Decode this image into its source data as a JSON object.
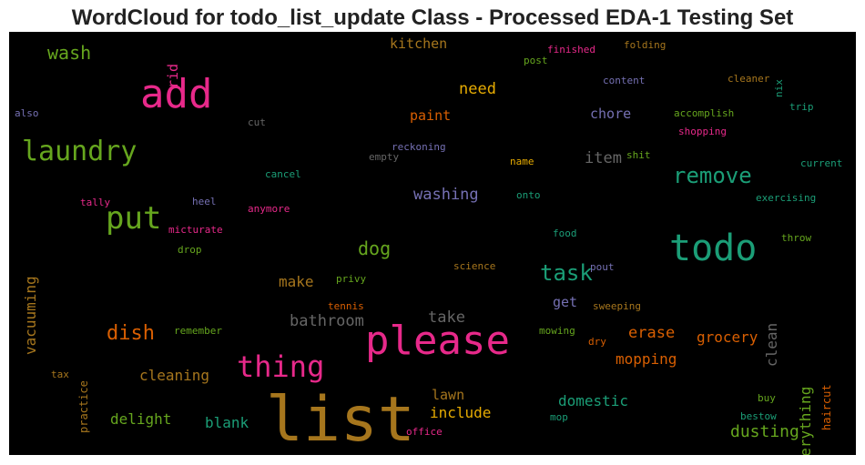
{
  "title": "WordCloud for todo_list_update Class - Processed EDA-1 Testing Set",
  "colors": {
    "background": "#000000",
    "palette": [
      "#1b9e77",
      "#d95f02",
      "#7570b3",
      "#e7298a",
      "#66a61e",
      "#e6ab02",
      "#a6761d",
      "#666666"
    ]
  },
  "chart_data": {
    "type": "wordcloud",
    "title": "WordCloud for todo_list_update Class - Processed EDA-1 Testing Set",
    "words": [
      {
        "text": "list",
        "color": "#a6761d"
      },
      {
        "text": "please",
        "color": "#e7298a"
      },
      {
        "text": "add",
        "color": "#e7298a"
      },
      {
        "text": "todo",
        "color": "#1b9e77"
      },
      {
        "text": "put",
        "color": "#66a61e"
      },
      {
        "text": "laundry",
        "color": "#66a61e"
      },
      {
        "text": "thing",
        "color": "#e7298a"
      },
      {
        "text": "remove",
        "color": "#1b9e77"
      },
      {
        "text": "task",
        "color": "#1b9e77"
      },
      {
        "text": "dish",
        "color": "#d95f02"
      },
      {
        "text": "wash",
        "color": "#66a61e"
      },
      {
        "text": "dog",
        "color": "#66a61e"
      },
      {
        "text": "need",
        "color": "#e6ab02"
      },
      {
        "text": "bathroom",
        "color": "#666666"
      },
      {
        "text": "take",
        "color": "#666666"
      },
      {
        "text": "item",
        "color": "#666666"
      },
      {
        "text": "washing",
        "color": "#7570b3"
      },
      {
        "text": "erase",
        "color": "#d95f02"
      },
      {
        "text": "dusting",
        "color": "#66a61e"
      },
      {
        "text": "grocery",
        "color": "#d95f02"
      },
      {
        "text": "mopping",
        "color": "#d95f02"
      },
      {
        "text": "cleaning",
        "color": "#a6761d"
      },
      {
        "text": "delight",
        "color": "#66a61e"
      },
      {
        "text": "blank",
        "color": "#1b9e77"
      },
      {
        "text": "include",
        "color": "#e6ab02"
      },
      {
        "text": "lawn",
        "color": "#a6761d"
      },
      {
        "text": "domestic",
        "color": "#1b9e77"
      },
      {
        "text": "kitchen",
        "color": "#a6761d"
      },
      {
        "text": "paint",
        "color": "#d95f02"
      },
      {
        "text": "chore",
        "color": "#7570b3"
      },
      {
        "text": "make",
        "color": "#a6761d"
      },
      {
        "text": "get",
        "color": "#7570b3"
      },
      {
        "text": "vacuuming",
        "color": "#a6761d"
      },
      {
        "text": "clean",
        "color": "#666666"
      },
      {
        "text": "everything",
        "color": "#66a61e"
      },
      {
        "text": "rid",
        "color": "#e7298a"
      },
      {
        "text": "practice",
        "color": "#a6761d"
      },
      {
        "text": "haircut",
        "color": "#d95f02"
      },
      {
        "text": "nix",
        "color": "#1b9e77"
      },
      {
        "text": "finished",
        "color": "#e7298a"
      },
      {
        "text": "folding",
        "color": "#a6761d"
      },
      {
        "text": "post",
        "color": "#66a61e"
      },
      {
        "text": "content",
        "color": "#7570b3"
      },
      {
        "text": "cleaner",
        "color": "#a6761d"
      },
      {
        "text": "also",
        "color": "#7570b3"
      },
      {
        "text": "cut",
        "color": "#666666"
      },
      {
        "text": "accomplish",
        "color": "#66a61e"
      },
      {
        "text": "trip",
        "color": "#1b9e77"
      },
      {
        "text": "shopping",
        "color": "#e7298a"
      },
      {
        "text": "reckoning",
        "color": "#7570b3"
      },
      {
        "text": "empty",
        "color": "#666666"
      },
      {
        "text": "name",
        "color": "#e6ab02"
      },
      {
        "text": "shit",
        "color": "#66a61e"
      },
      {
        "text": "current",
        "color": "#1b9e77"
      },
      {
        "text": "cancel",
        "color": "#1b9e77"
      },
      {
        "text": "exercising",
        "color": "#1b9e77"
      },
      {
        "text": "tally",
        "color": "#e7298a"
      },
      {
        "text": "heel",
        "color": "#7570b3"
      },
      {
        "text": "anymore",
        "color": "#e7298a"
      },
      {
        "text": "onto",
        "color": "#1b9e77"
      },
      {
        "text": "micturate",
        "color": "#e7298a"
      },
      {
        "text": "drop",
        "color": "#66a61e"
      },
      {
        "text": "food",
        "color": "#1b9e77"
      },
      {
        "text": "throw",
        "color": "#66a61e"
      },
      {
        "text": "science",
        "color": "#a6761d"
      },
      {
        "text": "pout",
        "color": "#7570b3"
      },
      {
        "text": "privy",
        "color": "#66a61e"
      },
      {
        "text": "tennis",
        "color": "#d95f02"
      },
      {
        "text": "sweeping",
        "color": "#a6761d"
      },
      {
        "text": "remember",
        "color": "#66a61e"
      },
      {
        "text": "mowing",
        "color": "#66a61e"
      },
      {
        "text": "dry",
        "color": "#d95f02"
      },
      {
        "text": "tax",
        "color": "#a6761d"
      },
      {
        "text": "buy",
        "color": "#66a61e"
      },
      {
        "text": "bestow",
        "color": "#1b9e77"
      },
      {
        "text": "mop",
        "color": "#1b9e77"
      },
      {
        "text": "office",
        "color": "#e7298a"
      }
    ]
  }
}
